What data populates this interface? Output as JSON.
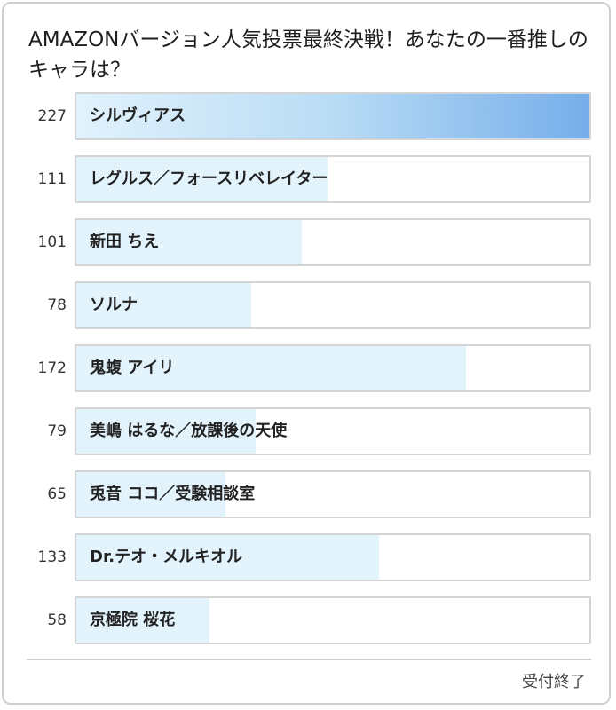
{
  "poll": {
    "title": "AMAZONバージョン人気投票最終決戦！あなたの一番推しのキャラは？",
    "status": "受付終了",
    "options": [
      {
        "label": "シルヴィアス",
        "votes": "227",
        "fill_pct": 100,
        "leader": true
      },
      {
        "label": "レグルス／フォースリベレイター",
        "votes": "111",
        "fill_pct": 49
      },
      {
        "label": "新田 ちえ",
        "votes": "101",
        "fill_pct": 44
      },
      {
        "label": "ソルナ",
        "votes": "78",
        "fill_pct": 34
      },
      {
        "label": "鬼蝮 アイリ",
        "votes": "172",
        "fill_pct": 76
      },
      {
        "label": "美嶋 はるな／放課後の天使",
        "votes": "79",
        "fill_pct": 35
      },
      {
        "label": "兎音 ココ／受験相談室",
        "votes": "65",
        "fill_pct": 29
      },
      {
        "label": "Dr.テオ・メルキオル",
        "votes": "133",
        "fill_pct": 59
      },
      {
        "label": "京極院 桜花",
        "votes": "58",
        "fill_pct": 26
      }
    ]
  },
  "colors": {
    "bar_fill": "#e2f3fc",
    "leader_gradient_end": "#76aeea",
    "border": "#d4d4d4"
  }
}
